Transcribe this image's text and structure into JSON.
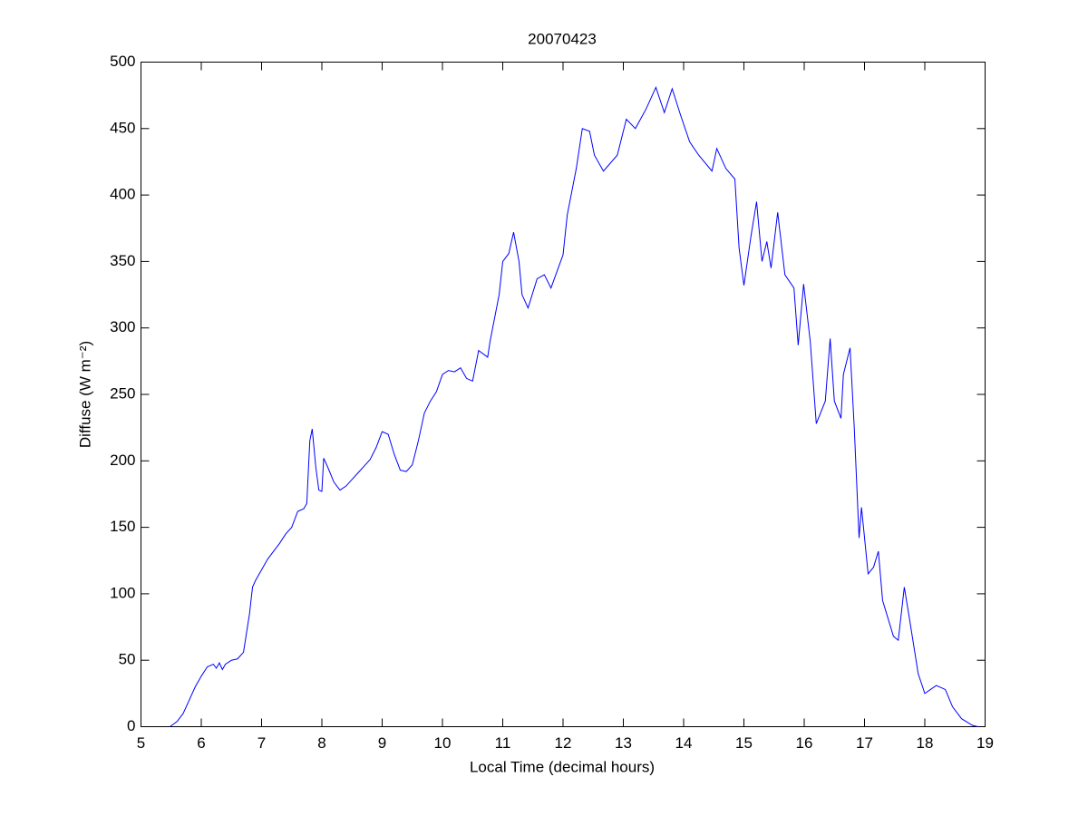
{
  "chart_data": {
    "type": "line",
    "title": "20070423",
    "xlabel": "Local Time (decimal hours)",
    "ylabel": "Diffuse (W m⁻²)",
    "color": "#0000ff",
    "x": [
      5.48,
      5.6,
      5.7,
      5.8,
      5.9,
      6.0,
      6.1,
      6.2,
      6.25,
      6.3,
      6.35,
      6.4,
      6.5,
      6.6,
      6.7,
      6.8,
      6.85,
      6.9,
      7.0,
      7.1,
      7.2,
      7.3,
      7.4,
      7.5,
      7.6,
      7.7,
      7.75,
      7.8,
      7.84,
      7.9,
      7.95,
      8.0,
      8.03,
      8.1,
      8.2,
      8.3,
      8.4,
      8.5,
      8.6,
      8.7,
      8.8,
      8.9,
      9.0,
      9.1,
      9.2,
      9.3,
      9.4,
      9.5,
      9.6,
      9.7,
      9.8,
      9.9,
      10.0,
      10.1,
      10.2,
      10.3,
      10.4,
      10.5,
      10.6,
      10.75,
      10.79,
      10.94,
      11.0,
      11.1,
      11.18,
      11.27,
      11.32,
      11.42,
      11.57,
      11.69,
      11.8,
      12.0,
      12.07,
      12.22,
      12.32,
      12.44,
      12.52,
      12.67,
      12.9,
      13.05,
      13.2,
      13.38,
      13.54,
      13.68,
      13.81,
      13.95,
      14.1,
      14.25,
      14.47,
      14.55,
      14.7,
      14.85,
      14.92,
      15.0,
      15.12,
      15.21,
      15.3,
      15.38,
      15.45,
      15.56,
      15.68,
      15.83,
      15.9,
      15.99,
      16.1,
      16.2,
      16.35,
      16.43,
      16.5,
      16.61,
      16.65,
      16.76,
      16.83,
      16.91,
      16.95,
      17.06,
      17.15,
      17.23,
      17.3,
      17.48,
      17.56,
      17.66,
      17.75,
      17.89,
      18.0,
      18.19,
      18.34,
      18.46,
      18.61,
      18.79,
      18.88
    ],
    "values": [
      0,
      4,
      10,
      20,
      30,
      38,
      45,
      47,
      44,
      48,
      43,
      47,
      50,
      51,
      56,
      85,
      105,
      110,
      118,
      126,
      132,
      138,
      145,
      150,
      162,
      164,
      168,
      215,
      224,
      195,
      178,
      177,
      202,
      195,
      184,
      178,
      181,
      186,
      191,
      196,
      201,
      210,
      222,
      220,
      205,
      193,
      192,
      197,
      215,
      236,
      245,
      252,
      265,
      268,
      267,
      270,
      262,
      260,
      283,
      278,
      290,
      325,
      350,
      356,
      372,
      350,
      325,
      315,
      337,
      340,
      330,
      355,
      385,
      420,
      450,
      448,
      430,
      418,
      430,
      457,
      450,
      465,
      481,
      462,
      480,
      460,
      440,
      430,
      418,
      435,
      420,
      412,
      360,
      332,
      370,
      395,
      350,
      365,
      345,
      387,
      340,
      330,
      287,
      333,
      290,
      228,
      245,
      292,
      245,
      232,
      265,
      285,
      225,
      142,
      165,
      115,
      120,
      132,
      95,
      68,
      65,
      105,
      80,
      40,
      25,
      31,
      28,
      15,
      6,
      1,
      0
    ],
    "xlim": [
      5,
      19
    ],
    "xticks": [
      5,
      6,
      7,
      8,
      9,
      10,
      11,
      12,
      13,
      14,
      15,
      16,
      17,
      18,
      19
    ],
    "ylim": [
      0,
      500
    ],
    "yticks": [
      0,
      50,
      100,
      150,
      200,
      250,
      300,
      350,
      400,
      450,
      500
    ]
  }
}
